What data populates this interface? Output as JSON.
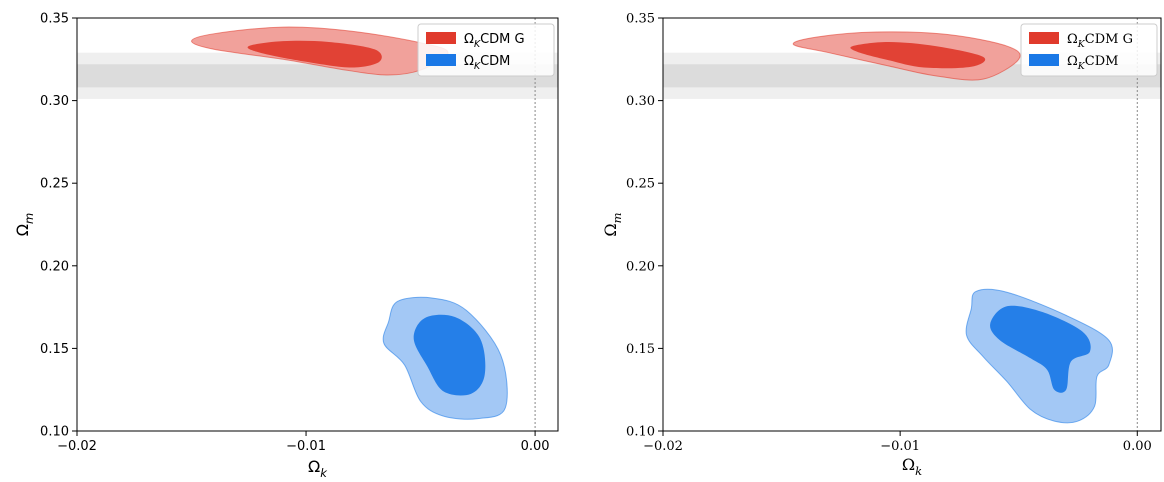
{
  "chart_data": [
    {
      "type": "contour",
      "font_style": "sans",
      "xlabel": "Ωk",
      "ylabel": "Ωm",
      "xlim": [
        -0.02,
        0.001
      ],
      "ylim": [
        0.1,
        0.35
      ],
      "xticks": [
        {
          "value": -0.02,
          "label": "−0.02"
        },
        {
          "value": -0.01,
          "label": "−0.01"
        },
        {
          "value": 0.0,
          "label": "0.00"
        }
      ],
      "yticks": [
        {
          "value": 0.1,
          "label": "0.10"
        },
        {
          "value": 0.15,
          "label": "0.15"
        },
        {
          "value": 0.2,
          "label": "0.20"
        },
        {
          "value": 0.25,
          "label": "0.25"
        },
        {
          "value": 0.3,
          "label": "0.30"
        },
        {
          "value": 0.35,
          "label": "0.35"
        }
      ],
      "reference_bands": [
        {
          "y_range": [
            0.301,
            0.329
          ],
          "color": "#efefef"
        },
        {
          "y_range": [
            0.308,
            0.322
          ],
          "color": "#dcdcdc"
        }
      ],
      "reference_line": {
        "x": 0.0,
        "style": "dotted",
        "color": "#888888"
      },
      "grid": false,
      "legend_position": "top-right",
      "series": [
        {
          "name": "ΩKCDM G",
          "color": "#e03a2c",
          "outer_color": "#f1a19b",
          "outer": [
            [
              -0.015,
              0.336
            ],
            [
              -0.014,
              0.3405
            ],
            [
              -0.011,
              0.3445
            ],
            [
              -0.008,
              0.342
            ],
            [
              -0.005,
              0.335
            ],
            [
              -0.0038,
              0.329
            ],
            [
              -0.005,
              0.3185
            ],
            [
              -0.0065,
              0.3155
            ],
            [
              -0.0085,
              0.319
            ],
            [
              -0.011,
              0.325
            ],
            [
              -0.014,
              0.331
            ]
          ],
          "inner": [
            [
              -0.0125,
              0.333
            ],
            [
              -0.011,
              0.336
            ],
            [
              -0.009,
              0.3355
            ],
            [
              -0.007,
              0.331
            ],
            [
              -0.0068,
              0.3235
            ],
            [
              -0.008,
              0.32
            ],
            [
              -0.01,
              0.3235
            ],
            [
              -0.012,
              0.329
            ]
          ]
        },
        {
          "name": "ΩKCDM",
          "color": "#1a78e6",
          "outer_color": "#a3c8f5",
          "outer": [
            [
              -0.0064,
              0.166
            ],
            [
              -0.006,
              0.1785
            ],
            [
              -0.0045,
              0.1805
            ],
            [
              -0.003,
              0.173
            ],
            [
              -0.0015,
              0.146
            ],
            [
              -0.0013,
              0.114
            ],
            [
              -0.0025,
              0.1075
            ],
            [
              -0.004,
              0.109
            ],
            [
              -0.005,
              0.118
            ],
            [
              -0.0057,
              0.14
            ],
            [
              -0.0066,
              0.153
            ]
          ],
          "inner": [
            [
              -0.0053,
              0.156
            ],
            [
              -0.0048,
              0.1685
            ],
            [
              -0.0035,
              0.169
            ],
            [
              -0.0024,
              0.156
            ],
            [
              -0.0022,
              0.134
            ],
            [
              -0.0028,
              0.1225
            ],
            [
              -0.004,
              0.124
            ],
            [
              -0.0047,
              0.139
            ]
          ]
        }
      ]
    },
    {
      "type": "contour",
      "font_style": "serif",
      "xlabel": "Ωk",
      "ylabel": "Ωm",
      "xlim": [
        -0.02,
        0.001
      ],
      "ylim": [
        0.1,
        0.35
      ],
      "xticks": [
        {
          "value": -0.02,
          "label": "−0.02"
        },
        {
          "value": -0.01,
          "label": "−0.01"
        },
        {
          "value": 0.0,
          "label": "0.00"
        }
      ],
      "yticks": [
        {
          "value": 0.1,
          "label": "0.10"
        },
        {
          "value": 0.15,
          "label": "0.15"
        },
        {
          "value": 0.2,
          "label": "0.20"
        },
        {
          "value": 0.25,
          "label": "0.25"
        },
        {
          "value": 0.3,
          "label": "0.30"
        },
        {
          "value": 0.35,
          "label": "0.35"
        }
      ],
      "reference_bands": [
        {
          "y_range": [
            0.301,
            0.329
          ],
          "color": "#efefef"
        },
        {
          "y_range": [
            0.308,
            0.322
          ],
          "color": "#dcdcdc"
        }
      ],
      "reference_line": {
        "x": 0.0,
        "style": "dotted",
        "color": "#888888"
      },
      "grid": false,
      "legend_position": "top-right",
      "series": [
        {
          "name": "ΩKCDM G",
          "color": "#e03a2c",
          "outer_color": "#f1a19b",
          "outer": [
            [
              -0.0145,
              0.334
            ],
            [
              -0.0135,
              0.3385
            ],
            [
              -0.011,
              0.3415
            ],
            [
              -0.008,
              0.34
            ],
            [
              -0.0055,
              0.333
            ],
            [
              -0.005,
              0.325
            ],
            [
              -0.0065,
              0.313
            ],
            [
              -0.0085,
              0.315
            ],
            [
              -0.0105,
              0.321
            ],
            [
              -0.013,
              0.329
            ]
          ],
          "inner": [
            [
              -0.012,
              0.333
            ],
            [
              -0.0105,
              0.3355
            ],
            [
              -0.0085,
              0.333
            ],
            [
              -0.0065,
              0.3265
            ],
            [
              -0.007,
              0.3205
            ],
            [
              -0.009,
              0.32
            ],
            [
              -0.0105,
              0.3245
            ],
            [
              -0.0118,
              0.3295
            ]
          ]
        },
        {
          "name": "ΩKCDM",
          "color": "#1a78e6",
          "outer_color": "#a3c8f5",
          "outer": [
            [
              -0.007,
              0.174
            ],
            [
              -0.0068,
              0.1845
            ],
            [
              -0.0055,
              0.184
            ],
            [
              -0.003,
              0.17
            ],
            [
              -0.0012,
              0.155
            ],
            [
              -0.0012,
              0.14
            ],
            [
              -0.0017,
              0.133
            ],
            [
              -0.0018,
              0.115
            ],
            [
              -0.0025,
              0.106
            ],
            [
              -0.0035,
              0.106
            ],
            [
              -0.0045,
              0.113
            ],
            [
              -0.0055,
              0.13
            ],
            [
              -0.0065,
              0.145
            ],
            [
              -0.0072,
              0.158
            ]
          ],
          "inner": [
            [
              -0.0062,
              0.165
            ],
            [
              -0.0055,
              0.1755
            ],
            [
              -0.004,
              0.172
            ],
            [
              -0.0023,
              0.16
            ],
            [
              -0.002,
              0.148
            ],
            [
              -0.0028,
              0.142
            ],
            [
              -0.003,
              0.125
            ],
            [
              -0.0035,
              0.125
            ],
            [
              -0.0038,
              0.137
            ],
            [
              -0.0045,
              0.144
            ],
            [
              -0.0058,
              0.155
            ]
          ]
        }
      ]
    }
  ]
}
